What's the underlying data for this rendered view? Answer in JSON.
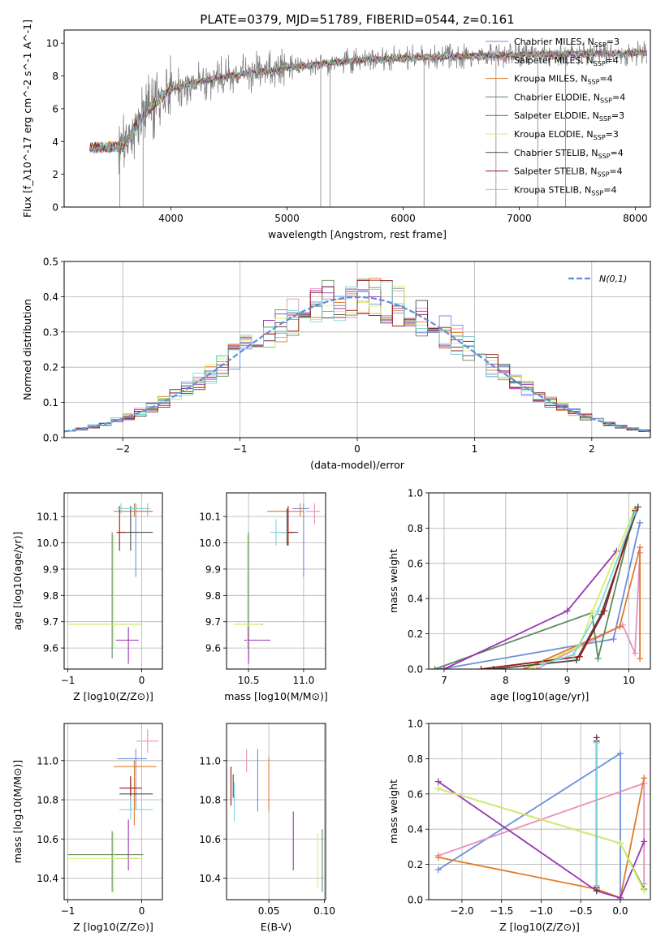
{
  "figure": {
    "title": "PLATE=0379, MJD=51789, FIBERID=0544, z=0.161"
  },
  "colors": {
    "Chabrier MILES": "#6a8fdc",
    "Salpeter MILES": "#e88fbd",
    "Kroupa MILES": "#e07b2a",
    "Chabrier ELODIE": "#5b8c5e",
    "Salpeter ELODIE": "#9a34b3",
    "Kroupa ELODIE": "#d6ef6b",
    "Chabrier STELIB": "#4b4b4b",
    "Salpeter STELIB": "#9b1a1a",
    "Kroupa STELIB": "#7fd6dc",
    "data": "#808080"
  },
  "chart_data": [
    {
      "id": "spectrum",
      "type": "line",
      "xlabel": "wavelength [Angstrom, rest frame]",
      "ylabel": "Flux [f_λ10^-17 erg cm^-2 s^-1 A^-1]",
      "xlim": [
        3080,
        8130
      ],
      "ylim": [
        0,
        10.8
      ],
      "xticks": [
        4000,
        5000,
        6000,
        7000,
        8000
      ],
      "yticks": [
        0,
        2,
        4,
        6,
        8,
        10
      ],
      "legend_position": "top-right",
      "legend": [
        {
          "label": "Chabrier MILES",
          "nssp": "3"
        },
        {
          "label": "Salpeter MILES",
          "nssp": "4"
        },
        {
          "label": "Kroupa MILES",
          "nssp": "4"
        },
        {
          "label": "Chabrier ELODIE",
          "nssp": "4"
        },
        {
          "label": "Salpeter ELODIE",
          "nssp": "3"
        },
        {
          "label": "Kroupa ELODIE",
          "nssp": "3"
        },
        {
          "label": "Chabrier STELIB",
          "nssp": "4"
        },
        {
          "label": "Salpeter STELIB",
          "nssp": "4"
        },
        {
          "label": "Kroupa STELIB",
          "nssp": "4"
        }
      ],
      "continuum": {
        "x": [
          3300,
          3600,
          3700,
          3800,
          3900,
          4000,
          4200,
          4500,
          5000,
          5500,
          6000,
          6500,
          7000,
          7500,
          8000,
          8100
        ],
        "y": [
          3.6,
          3.7,
          5.0,
          5.9,
          6.6,
          7.2,
          7.6,
          8.0,
          8.5,
          8.9,
          9.1,
          9.2,
          9.3,
          9.35,
          9.4,
          9.4
        ]
      }
    },
    {
      "id": "residuals",
      "type": "histogram",
      "xlabel": "(data-model)/error",
      "ylabel": "Normed distribution",
      "xlim": [
        -2.5,
        2.5
      ],
      "ylim": [
        0,
        0.5
      ],
      "xticks": [
        -2,
        -1,
        0,
        1,
        2
      ],
      "yticks": [
        0.0,
        0.1,
        0.2,
        0.3,
        0.4,
        0.5
      ],
      "grid": true,
      "legend_position": "top-right",
      "legend_label": "N(0,1)",
      "bins": 50
    },
    {
      "id": "age_vs_Z",
      "type": "errorbar",
      "xlabel": "Z [log10(Z/Z⊙)]",
      "ylabel": "age [log10(age/yr)]",
      "xlim": [
        -1.05,
        0.28
      ],
      "ylim": [
        9.52,
        10.19
      ],
      "xticks": [
        -1,
        0
      ],
      "yticks": [
        9.6,
        9.7,
        9.8,
        9.9,
        10.0,
        10.1
      ],
      "grid": true,
      "points": [
        {
          "model": "Chabrier MILES",
          "x": -0.08,
          "xerr": [
            0.25,
            0.15
          ],
          "y": 10.13,
          "yerr": [
            0.26,
            0.02
          ]
        },
        {
          "model": "Salpeter MILES",
          "x": 0.08,
          "xerr": [
            0.15,
            0.07
          ],
          "y": 10.12,
          "yerr": [
            0.02,
            0.03
          ]
        },
        {
          "model": "Kroupa MILES",
          "x": -0.1,
          "xerr": [
            0.28,
            0.25
          ],
          "y": 10.12,
          "yerr": [
            0.02,
            0.03
          ]
        },
        {
          "model": "Chabrier ELODIE",
          "x": -0.4,
          "xerr": [
            0.6,
            0.4
          ],
          "y": 9.69,
          "yerr": [
            0.13,
            0.35
          ]
        },
        {
          "model": "Salpeter ELODIE",
          "x": -0.18,
          "xerr": [
            0.17,
            0.14
          ],
          "y": 9.63,
          "yerr": [
            0.09,
            0.05
          ]
        },
        {
          "model": "Kroupa ELODIE",
          "x": -0.38,
          "xerr": [
            0.62,
            0.38
          ],
          "y": 9.69,
          "yerr": [
            0.09,
            0.34
          ]
        },
        {
          "model": "Chabrier STELIB",
          "x": -0.15,
          "xerr": [
            0.15,
            0.3
          ],
          "y": 10.04,
          "yerr": [
            0.07,
            0.1
          ]
        },
        {
          "model": "Salpeter STELIB",
          "x": -0.3,
          "xerr": [
            0.04,
            0.08
          ],
          "y": 10.04,
          "yerr": [
            0.07,
            0.1
          ]
        },
        {
          "model": "Kroupa STELIB",
          "x": -0.28,
          "xerr": [
            0.05,
            0.4
          ],
          "y": 10.13,
          "yerr": [
            0.02,
            0.02
          ]
        }
      ]
    },
    {
      "id": "age_vs_mass",
      "type": "errorbar",
      "xlabel": "mass [log10(M/M⊙)]",
      "ylabel": "",
      "xlim": [
        10.3,
        11.2
      ],
      "ylim": [
        9.52,
        10.19
      ],
      "xticks": [
        10.5,
        11.0
      ],
      "yticks": [
        9.6,
        9.7,
        9.8,
        9.9,
        10.0,
        10.1
      ],
      "grid": true,
      "points": [
        {
          "model": "Chabrier MILES",
          "x": 11.0,
          "xerr": [
            0.1,
            0.05
          ],
          "y": 10.13,
          "yerr": [
            0.26,
            0.02
          ]
        },
        {
          "model": "Salpeter MILES",
          "x": 11.1,
          "xerr": [
            0.08,
            0.05
          ],
          "y": 10.12,
          "yerr": [
            0.05,
            0.03
          ]
        },
        {
          "model": "Kroupa MILES",
          "x": 10.97,
          "xerr": [
            0.3,
            0.03
          ],
          "y": 10.12,
          "yerr": [
            0.02,
            0.03
          ]
        },
        {
          "model": "Chabrier ELODIE",
          "x": 10.5,
          "xerr": [
            0.12,
            0.13
          ],
          "y": 9.69,
          "yerr": [
            0.13,
            0.35
          ]
        },
        {
          "model": "Salpeter ELODIE",
          "x": 10.5,
          "xerr": [
            0.04,
            0.2
          ],
          "y": 9.63,
          "yerr": [
            0.09,
            0.05
          ]
        },
        {
          "model": "Kroupa ELODIE",
          "x": 10.49,
          "xerr": [
            0.12,
            0.13
          ],
          "y": 9.69,
          "yerr": [
            0.09,
            0.34
          ]
        },
        {
          "model": "Chabrier STELIB",
          "x": 10.85,
          "xerr": [
            0.08,
            0.1
          ],
          "y": 10.04,
          "yerr": [
            0.05,
            0.09
          ]
        },
        {
          "model": "Salpeter STELIB",
          "x": 10.86,
          "xerr": [
            0.06,
            0.06
          ],
          "y": 10.04,
          "yerr": [
            0.05,
            0.1
          ]
        },
        {
          "model": "Kroupa STELIB",
          "x": 10.75,
          "xerr": [
            0.05,
            0.1
          ],
          "y": 10.04,
          "yerr": [
            0.05,
            0.05
          ]
        }
      ]
    },
    {
      "id": "weight_vs_age",
      "type": "line",
      "xlabel": "age [log10(age/yr)]",
      "ylabel": "mass weight",
      "xlim": [
        6.75,
        10.35
      ],
      "ylim": [
        0,
        1
      ],
      "xticks": [
        7,
        8,
        9,
        10
      ],
      "yticks": [
        0.0,
        0.2,
        0.4,
        0.6,
        0.8,
        1.0
      ],
      "grid": true,
      "series": [
        {
          "model": "Chabrier MILES",
          "x": [
            6.95,
            9.75,
            10.18
          ],
          "y": [
            0.0,
            0.17,
            0.83
          ]
        },
        {
          "model": "Salpeter MILES",
          "x": [
            8.5,
            9.9,
            10.1,
            10.18
          ],
          "y": [
            0.0,
            0.25,
            0.09,
            0.66
          ]
        },
        {
          "model": "Kroupa MILES",
          "x": [
            8.3,
            9.85,
            10.18,
            10.18
          ],
          "y": [
            0.0,
            0.24,
            0.69,
            0.06
          ]
        },
        {
          "model": "Chabrier ELODIE",
          "x": [
            6.85,
            9.4,
            9.5,
            10.1
          ],
          "y": [
            0.0,
            0.32,
            0.06,
            0.91
          ]
        },
        {
          "model": "Salpeter ELODIE",
          "x": [
            7.0,
            9.0,
            9.8
          ],
          "y": [
            0.0,
            0.33,
            0.67
          ]
        },
        {
          "model": "Kroupa ELODIE",
          "x": [
            8.4,
            9.2,
            9.4,
            10.1
          ],
          "y": [
            0.0,
            0.13,
            0.32,
            0.91
          ]
        },
        {
          "model": "Chabrier STELIB",
          "x": [
            7.8,
            9.15,
            9.55,
            10.15
          ],
          "y": [
            0.0,
            0.05,
            0.31,
            0.92
          ]
        },
        {
          "model": "Salpeter STELIB",
          "x": [
            7.6,
            9.2,
            9.6,
            10.1
          ],
          "y": [
            0.0,
            0.07,
            0.33,
            0.9
          ]
        },
        {
          "model": "Kroupa STELIB",
          "x": [
            8.6,
            9.1,
            9.5,
            10.1
          ],
          "y": [
            0.03,
            0.08,
            0.33,
            0.89
          ]
        }
      ]
    },
    {
      "id": "mass_vs_Z",
      "type": "errorbar",
      "xlabel": "Z [log10(Z/Z⊙)]",
      "ylabel": "mass [log10(M/M⊙)]",
      "xlim": [
        -1.05,
        0.28
      ],
      "ylim": [
        10.29,
        11.19
      ],
      "xticks": [
        -1,
        0
      ],
      "yticks": [
        10.4,
        10.6,
        10.8,
        11.0
      ],
      "grid": true,
      "points": [
        {
          "model": "Chabrier MILES",
          "x": -0.08,
          "xerr": [
            0.25,
            0.15
          ],
          "y": 11.01,
          "yerr": [
            0.26,
            0.05
          ]
        },
        {
          "model": "Salpeter MILES",
          "x": 0.08,
          "xerr": [
            0.15,
            0.15
          ],
          "y": 11.1,
          "yerr": [
            0.06,
            0.06
          ]
        },
        {
          "model": "Kroupa MILES",
          "x": -0.1,
          "xerr": [
            0.28,
            0.3
          ],
          "y": 10.97,
          "yerr": [
            0.3,
            0.03
          ]
        },
        {
          "model": "Chabrier ELODIE",
          "x": -0.4,
          "xerr": [
            0.6,
            0.42
          ],
          "y": 10.52,
          "yerr": [
            0.19,
            0.12
          ]
        },
        {
          "model": "Salpeter ELODIE",
          "x": -0.18,
          "xerr": [
            0.16,
            0.14
          ],
          "y": 10.5,
          "yerr": [
            0.06,
            0.2
          ]
        },
        {
          "model": "Kroupa ELODIE",
          "x": -0.38,
          "xerr": [
            0.62,
            0.38
          ],
          "y": 10.5,
          "yerr": [
            0.18,
            0.13
          ]
        },
        {
          "model": "Chabrier STELIB",
          "x": -0.15,
          "xerr": [
            0.15,
            0.3
          ],
          "y": 10.83,
          "yerr": [
            0.08,
            0.09
          ]
        },
        {
          "model": "Salpeter STELIB",
          "x": -0.15,
          "xerr": [
            0.15,
            0.15
          ],
          "y": 10.86,
          "yerr": [
            0.06,
            0.06
          ]
        },
        {
          "model": "Kroupa STELIB",
          "x": -0.15,
          "xerr": [
            0.15,
            0.3
          ],
          "y": 10.75,
          "yerr": [
            0.05,
            0.07
          ]
        }
      ]
    },
    {
      "id": "mass_vs_EBV",
      "type": "errorbar",
      "xlabel": "E(B-V)",
      "ylabel": "",
      "xlim": [
        0.012,
        0.101
      ],
      "ylim": [
        10.29,
        11.19
      ],
      "xticks": [
        0.05,
        0.1
      ],
      "xtick_labels": [
        "0.05",
        "0.10"
      ],
      "yticks": [
        10.4,
        10.6,
        10.8,
        11.0
      ],
      "grid": true,
      "points": [
        {
          "model": "Chabrier MILES",
          "x": 0.04,
          "y": 10.9,
          "yerr": [
            0.16,
            0.16
          ]
        },
        {
          "model": "Salpeter MILES",
          "x": 0.03,
          "y": 11.0,
          "yerr": [
            0.06,
            0.06
          ]
        },
        {
          "model": "Kroupa MILES",
          "x": 0.05,
          "y": 10.88,
          "yerr": [
            0.14,
            0.14
          ]
        },
        {
          "model": "Chabrier ELODIE",
          "x": 0.098,
          "y": 10.49,
          "yerr": [
            0.16,
            0.16
          ]
        },
        {
          "model": "Salpeter ELODIE",
          "x": 0.072,
          "y": 10.59,
          "yerr": [
            0.15,
            0.15
          ]
        },
        {
          "model": "Kroupa ELODIE",
          "x": 0.094,
          "y": 10.49,
          "yerr": [
            0.14,
            0.14
          ]
        },
        {
          "model": "Chabrier STELIB",
          "x": 0.018,
          "y": 10.87,
          "yerr": [
            0.06,
            0.06
          ]
        },
        {
          "model": "Salpeter STELIB",
          "x": 0.016,
          "y": 10.87,
          "yerr": [
            0.1,
            0.1
          ]
        },
        {
          "model": "Kroupa STELIB",
          "x": 0.019,
          "y": 10.79,
          "yerr": [
            0.1,
            0.1
          ]
        }
      ]
    },
    {
      "id": "weight_vs_Z",
      "type": "line",
      "xlabel": "Z [log10(Z/Z⊙)]",
      "ylabel": "mass weight",
      "xlim": [
        -2.42,
        0.38
      ],
      "ylim": [
        0,
        1
      ],
      "xticks": [
        -2.0,
        -1.5,
        -1.0,
        -0.5,
        0.0
      ],
      "xtick_labels": [
        "−2.0",
        "−1.5",
        "−1.0",
        "−0.5",
        "0.0"
      ],
      "yticks": [
        0.0,
        0.2,
        0.4,
        0.6,
        0.8,
        1.0
      ],
      "grid": true,
      "series": [
        {
          "model": "Chabrier MILES",
          "x": [
            -2.3,
            0.0,
            0.0
          ],
          "y": [
            0.17,
            0.83,
            0.0
          ]
        },
        {
          "model": "Salpeter MILES",
          "x": [
            -2.3,
            0.3,
            0.3
          ],
          "y": [
            0.25,
            0.66,
            0.09
          ]
        },
        {
          "model": "Kroupa MILES",
          "x": [
            -2.3,
            -0.3,
            0.0,
            0.3
          ],
          "y": [
            0.24,
            0.06,
            0.01,
            0.69
          ]
        },
        {
          "model": "Chabrier ELODIE",
          "x": [
            -2.3,
            0.0,
            0.3
          ],
          "y": [
            0.63,
            0.32,
            0.06
          ]
        },
        {
          "model": "Salpeter ELODIE",
          "x": [
            -2.3,
            -0.3,
            0.0,
            0.3
          ],
          "y": [
            0.67,
            0.05,
            0.01,
            0.33
          ]
        },
        {
          "model": "Kroupa ELODIE",
          "x": [
            -2.3,
            0.0,
            0.3
          ],
          "y": [
            0.63,
            0.32,
            0.05
          ]
        },
        {
          "model": "Chabrier STELIB",
          "x": [
            -0.3,
            -0.3
          ],
          "y": [
            0.92,
            0.05
          ]
        },
        {
          "model": "Salpeter STELIB",
          "x": [
            -0.3,
            -0.3
          ],
          "y": [
            0.9,
            0.07
          ]
        },
        {
          "model": "Kroupa STELIB",
          "x": [
            -0.3,
            -0.3
          ],
          "y": [
            0.89,
            0.08
          ]
        }
      ]
    }
  ]
}
